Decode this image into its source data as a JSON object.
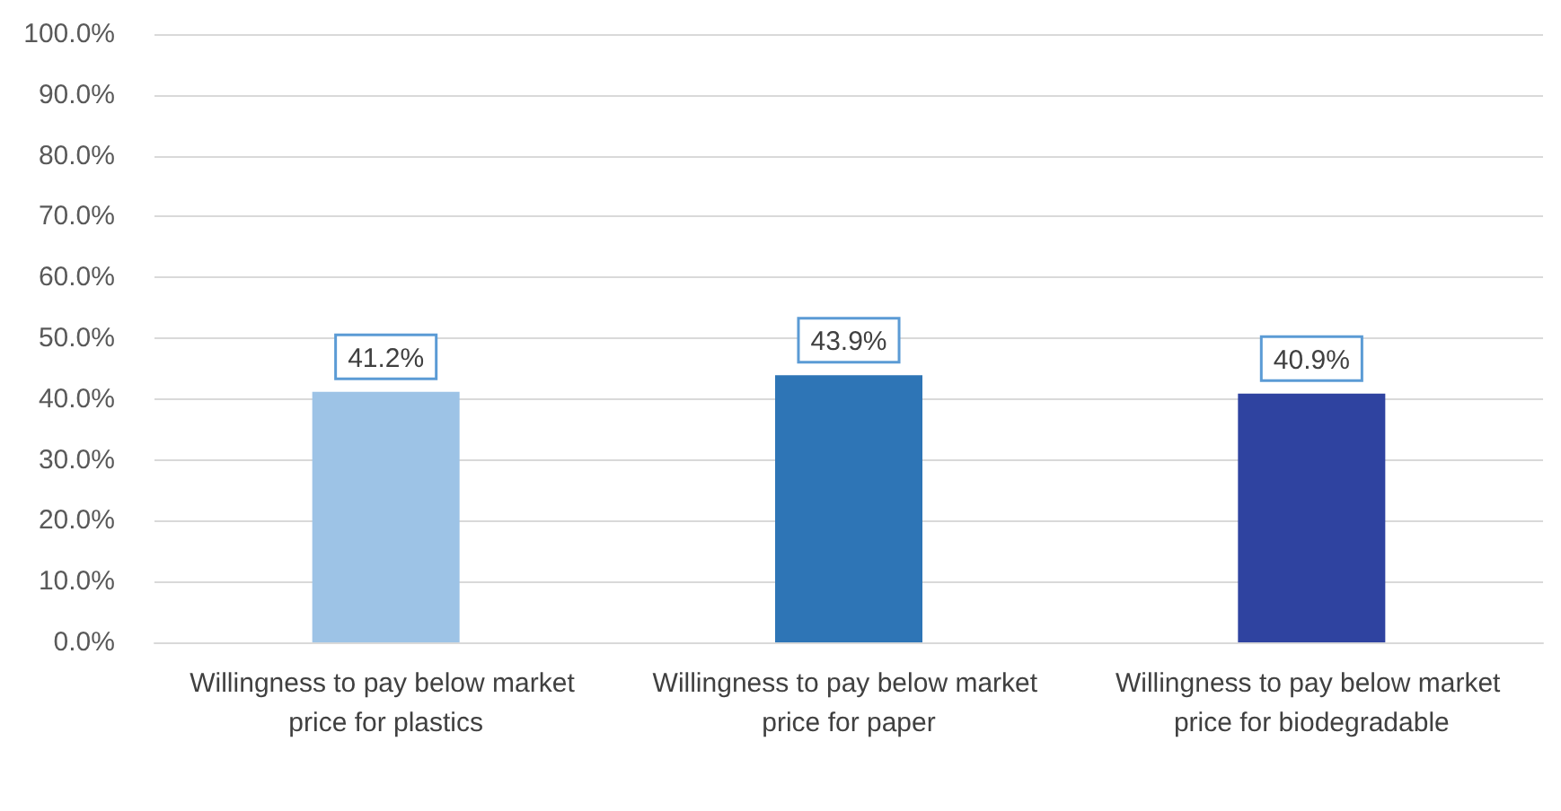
{
  "chart_data": {
    "type": "bar",
    "categories": [
      "Willingness to pay below market price for plastics",
      "Willingness to pay below market price for paper",
      "Willingness to pay below market price for biodegradable"
    ],
    "values": [
      41.2,
      43.9,
      40.9
    ],
    "colors": [
      "#9dc3e6",
      "#2e75b6",
      "#2f43a0"
    ],
    "value_labels": [
      "41.2%",
      "43.9%",
      "40.9%"
    ],
    "ylim": [
      0,
      100
    ],
    "yticks": [
      {
        "value": 0,
        "label": "0.0%"
      },
      {
        "value": 10,
        "label": "10.0%"
      },
      {
        "value": 20,
        "label": "20.0%"
      },
      {
        "value": 30,
        "label": "30.0%"
      },
      {
        "value": 40,
        "label": "40.0%"
      },
      {
        "value": 50,
        "label": "50.0%"
      },
      {
        "value": 60,
        "label": "60.0%"
      },
      {
        "value": 70,
        "label": "70.0%"
      },
      {
        "value": 80,
        "label": "80.0%"
      },
      {
        "value": 90,
        "label": "90.0%"
      },
      {
        "value": 100,
        "label": "100.0%"
      }
    ],
    "grid": "y"
  }
}
